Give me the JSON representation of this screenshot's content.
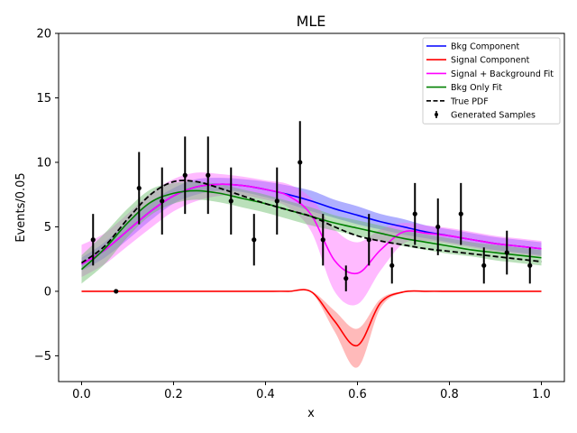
{
  "chart_data": {
    "type": "line",
    "title": "MLE",
    "xlabel": "x",
    "ylabel": "Events/0.05",
    "xlim": [
      -0.05,
      1.05
    ],
    "ylim": [
      -7,
      20
    ],
    "xticks": [
      0.0,
      0.2,
      0.4,
      0.6,
      0.8,
      1.0
    ],
    "xtick_labels": [
      "0.0",
      "0.2",
      "0.4",
      "0.6",
      "0.8",
      "1.0"
    ],
    "yticks": [
      -5,
      0,
      5,
      10,
      15,
      20
    ],
    "ytick_labels": [
      "−5",
      "0",
      "5",
      "10",
      "15",
      "20"
    ],
    "legend_position": "top-right",
    "legend": [
      {
        "label": "Bkg Component",
        "color": "#0000ff",
        "style": "line"
      },
      {
        "label": "Signal Component",
        "color": "#ff0000",
        "style": "line"
      },
      {
        "label": "Signal + Background Fit",
        "color": "#ff00ff",
        "style": "line"
      },
      {
        "label": "Bkg Only Fit",
        "color": "#008000",
        "style": "line"
      },
      {
        "label": "True PDF",
        "color": "#000000",
        "style": "dashed"
      },
      {
        "label": "Generated Samples",
        "color": "#000000",
        "style": "errorbar"
      }
    ],
    "curve_x": [
      0.0,
      0.05,
      0.1,
      0.15,
      0.2,
      0.25,
      0.3,
      0.35,
      0.4,
      0.45,
      0.5,
      0.55,
      0.6,
      0.65,
      0.7,
      0.75,
      0.8,
      0.85,
      0.9,
      0.95,
      1.0
    ],
    "series": [
      {
        "name": "Bkg Component",
        "color": "#0000ff",
        "values": [
          2.1,
          3.2,
          4.7,
          6.2,
          7.4,
          8.1,
          8.3,
          8.2,
          7.9,
          7.5,
          7.0,
          6.4,
          5.9,
          5.4,
          5.0,
          4.6,
          4.3,
          4.0,
          3.7,
          3.5,
          3.3
        ],
        "band_lower": [
          1.6,
          2.6,
          4.0,
          5.5,
          6.8,
          7.5,
          7.8,
          7.7,
          7.3,
          6.8,
          6.2,
          5.7,
          5.2,
          4.8,
          4.4,
          4.1,
          3.8,
          3.5,
          3.2,
          3.0,
          2.8
        ],
        "band_upper": [
          2.6,
          3.8,
          5.4,
          6.9,
          8.0,
          8.7,
          8.8,
          8.7,
          8.5,
          8.2,
          7.8,
          7.1,
          6.6,
          6.0,
          5.6,
          5.1,
          4.8,
          4.5,
          4.2,
          4.0,
          3.8
        ],
        "band_color": "#4d4dff"
      },
      {
        "name": "Signal + Background Fit",
        "color": "#ff00ff",
        "values": [
          2.1,
          3.2,
          4.7,
          6.2,
          7.4,
          8.1,
          8.3,
          8.2,
          7.9,
          7.4,
          5.9,
          2.4,
          1.4,
          3.2,
          4.6,
          4.5,
          4.3,
          4.0,
          3.7,
          3.5,
          3.3
        ],
        "band_lower": [
          1.1,
          2.1,
          3.5,
          4.9,
          6.2,
          7.0,
          7.4,
          7.4,
          7.1,
          6.5,
          4.6,
          0.0,
          -1.0,
          1.6,
          3.7,
          3.9,
          3.7,
          3.4,
          3.1,
          2.9,
          2.7
        ],
        "band_upper": [
          3.6,
          4.5,
          6.0,
          7.6,
          8.7,
          9.2,
          9.1,
          8.9,
          8.6,
          8.3,
          7.2,
          4.8,
          3.8,
          4.8,
          5.3,
          5.1,
          4.9,
          4.6,
          4.3,
          4.1,
          3.9
        ],
        "band_color": "#ff66ff"
      },
      {
        "name": "Bkg Only Fit",
        "color": "#008000",
        "values": [
          1.7,
          3.3,
          5.3,
          6.9,
          7.6,
          7.8,
          7.6,
          7.2,
          6.8,
          6.3,
          5.8,
          5.3,
          4.9,
          4.5,
          4.1,
          3.8,
          3.5,
          3.2,
          3.0,
          2.8,
          2.6
        ],
        "band_lower": [
          0.6,
          2.1,
          4.2,
          5.9,
          6.8,
          7.1,
          6.9,
          6.5,
          6.1,
          5.6,
          5.1,
          4.7,
          4.3,
          3.9,
          3.5,
          3.2,
          2.9,
          2.7,
          2.4,
          2.2,
          2.0
        ],
        "band_upper": [
          2.8,
          4.5,
          6.4,
          7.9,
          8.4,
          8.5,
          8.3,
          7.9,
          7.5,
          7.0,
          6.5,
          5.9,
          5.5,
          5.1,
          4.7,
          4.4,
          4.1,
          3.8,
          3.6,
          3.4,
          3.2
        ],
        "band_color": "#66bb66"
      },
      {
        "name": "Signal Component",
        "color": "#ff0000",
        "values": [
          0,
          0,
          0,
          0,
          0,
          0,
          0,
          0,
          0,
          0,
          -0.05,
          -2.3,
          -4.2,
          -0.9,
          -0.05,
          0,
          0,
          0,
          0,
          0,
          0
        ],
        "band_lower": [
          0,
          0,
          0,
          0,
          0,
          0,
          0,
          0,
          0,
          0,
          -0.1,
          -3.1,
          -5.9,
          -1.3,
          -0.1,
          0,
          0,
          0,
          0,
          0,
          0
        ],
        "band_upper": [
          0,
          0,
          0,
          0,
          0,
          0,
          0,
          0,
          0,
          0,
          0,
          -1.5,
          -2.9,
          -0.6,
          0,
          0,
          0,
          0,
          0,
          0,
          0
        ],
        "band_color": "#ff6666"
      },
      {
        "name": "True PDF",
        "color": "#000000",
        "dashed": true,
        "values": [
          2.2,
          3.5,
          5.6,
          7.5,
          8.5,
          8.5,
          8.0,
          7.4,
          6.8,
          6.3,
          5.8,
          5.0,
          4.3,
          3.9,
          3.6,
          3.3,
          3.1,
          2.9,
          2.7,
          2.5,
          2.3
        ]
      }
    ],
    "samples": {
      "name": "Generated Samples",
      "x": [
        0.025,
        0.075,
        0.125,
        0.175,
        0.225,
        0.275,
        0.325,
        0.375,
        0.425,
        0.475,
        0.525,
        0.575,
        0.625,
        0.675,
        0.725,
        0.775,
        0.825,
        0.875,
        0.925,
        0.975
      ],
      "y": [
        4,
        0,
        8,
        7,
        9,
        9,
        7,
        4,
        7,
        10,
        4,
        1,
        4,
        2,
        6,
        5,
        6,
        2,
        3,
        2
      ],
      "err": [
        2.0,
        0,
        2.8,
        2.6,
        3.0,
        3.0,
        2.6,
        2.0,
        2.6,
        3.2,
        2.0,
        1.0,
        2.0,
        1.4,
        2.4,
        2.2,
        2.4,
        1.4,
        1.7,
        1.4
      ]
    }
  }
}
